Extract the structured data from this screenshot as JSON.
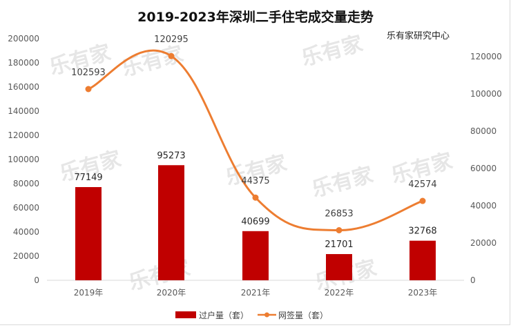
{
  "chart_data": {
    "type": "bar+line",
    "title": "2019-2023年深圳二手住宅成交量走势",
    "subtitle": "乐有家研究中心",
    "categories": [
      "2019年",
      "2020年",
      "2021年",
      "2022年",
      "2023年"
    ],
    "series": [
      {
        "name": "过户量（套）",
        "type": "bar",
        "axis": "left",
        "color": "#c00000",
        "values": [
          77149,
          95273,
          40699,
          21701,
          32768
        ]
      },
      {
        "name": "网签量（套）",
        "type": "line",
        "axis": "right",
        "color": "#ed7d31",
        "smooth": true,
        "values": [
          102593,
          120295,
          44375,
          26853,
          42574
        ]
      }
    ],
    "y_left": {
      "min": 0,
      "max": 200000,
      "step": 20000,
      "ticks": [
        "0",
        "20000",
        "40000",
        "60000",
        "80000",
        "100000",
        "120000",
        "140000",
        "160000",
        "180000",
        "200000"
      ]
    },
    "y_right": {
      "min": 0,
      "max": 120000,
      "step": 20000,
      "ticks": [
        "0",
        "20000",
        "40000",
        "60000",
        "80000",
        "100000",
        "120000"
      ]
    },
    "grid": false,
    "legend_position": "bottom",
    "watermark": "乐有家"
  }
}
